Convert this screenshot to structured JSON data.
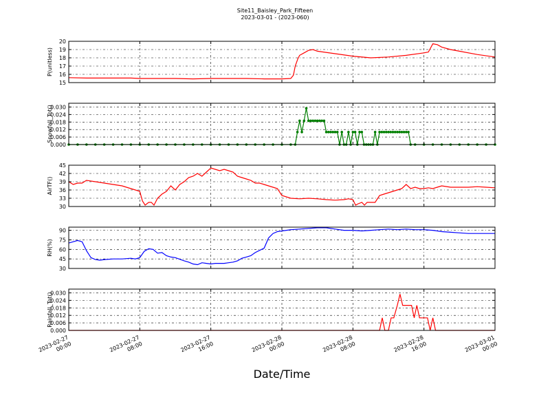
{
  "figure": {
    "title_line1": "Site11_Baisley_Park_Fifteen",
    "title_line2": "2023-03-01 - (2023-060)",
    "xlabel": "Date/Time",
    "x_ticks": [
      {
        "x": 0,
        "line1": "2023-02-27",
        "line2": "00:00"
      },
      {
        "x": 8,
        "line1": "2023-02-27",
        "line2": "08:00"
      },
      {
        "x": 16,
        "line1": "2023-02-27",
        "line2": "16:00"
      },
      {
        "x": 24,
        "line1": "2023-02-28",
        "line2": "00:00"
      },
      {
        "x": 32,
        "line1": "2023-02-28",
        "line2": "08:00"
      },
      {
        "x": 40,
        "line1": "2023-02-28",
        "line2": "16:00"
      },
      {
        "x": 48,
        "line1": "2023-03-01",
        "line2": "00:00"
      }
    ]
  },
  "chart_data": [
    {
      "type": "line",
      "ylabel": "P(unitless)",
      "color": "#ff0000",
      "markers": false,
      "xlim": [
        0,
        48
      ],
      "ylim": [
        15,
        20
      ],
      "yticks": [
        15,
        16,
        17,
        18,
        19,
        20
      ],
      "ytick_labels": [
        "15",
        "16",
        "17",
        "18",
        "19",
        "20"
      ],
      "grid": true,
      "x": [
        0,
        2,
        4,
        6,
        7,
        8,
        10,
        12,
        14,
        16,
        18,
        20,
        22,
        24,
        25,
        25.3,
        25.5,
        25.8,
        26,
        26.5,
        27,
        27.5,
        28,
        30,
        32,
        34,
        36,
        38,
        40,
        40.5,
        41,
        41.5,
        42,
        43,
        44,
        46,
        48
      ],
      "y": [
        15.6,
        15.55,
        15.55,
        15.55,
        15.55,
        15.5,
        15.5,
        15.5,
        15.45,
        15.5,
        15.5,
        15.5,
        15.45,
        15.45,
        15.5,
        15.9,
        17.0,
        17.9,
        18.3,
        18.6,
        18.9,
        19.0,
        18.8,
        18.5,
        18.2,
        18.0,
        18.1,
        18.3,
        18.6,
        18.7,
        19.7,
        19.6,
        19.3,
        19.0,
        18.8,
        18.4,
        18.1
      ]
    },
    {
      "type": "line",
      "ylabel": "Snowfall_Tot()",
      "color": "#007f00",
      "markers": true,
      "xlim": [
        0,
        48
      ],
      "ylim": [
        0,
        0.033
      ],
      "yticks": [
        0,
        0.006,
        0.012,
        0.018,
        0.024,
        0.03
      ],
      "ytick_labels": [
        "0.000",
        "0.006",
        "0.012",
        "0.018",
        "0.024",
        "0.030"
      ],
      "grid": true,
      "x": [
        0,
        1,
        2,
        3,
        4,
        5,
        6,
        7,
        8,
        9,
        10,
        11,
        12,
        13,
        14,
        15,
        16,
        17,
        18,
        19,
        20,
        21,
        22,
        23,
        24,
        25,
        25.5,
        25.75,
        26.0,
        26.25,
        26.5,
        26.75,
        27.0,
        27.25,
        27.5,
        27.75,
        28.0,
        28.25,
        28.5,
        28.75,
        29.0,
        29.25,
        29.5,
        29.75,
        30.0,
        30.25,
        30.5,
        30.75,
        31.0,
        31.25,
        31.5,
        31.75,
        32.0,
        32.25,
        32.5,
        32.75,
        33.0,
        33.25,
        33.5,
        33.75,
        34.0,
        34.25,
        34.5,
        34.75,
        35.0,
        35.25,
        35.5,
        35.75,
        36.0,
        36.25,
        36.5,
        36.75,
        37.0,
        37.25,
        37.5,
        37.75,
        38.0,
        38.25,
        38.5,
        39,
        40,
        41,
        42,
        43,
        44,
        45,
        46,
        47,
        48
      ],
      "y": [
        0,
        0,
        0,
        0,
        0,
        0,
        0,
        0,
        0,
        0,
        0,
        0,
        0,
        0,
        0,
        0,
        0,
        0,
        0,
        0,
        0,
        0,
        0,
        0,
        0,
        0,
        0,
        0.01,
        0.019,
        0.01,
        0.019,
        0.029,
        0.019,
        0.019,
        0.019,
        0.019,
        0.019,
        0.019,
        0.019,
        0.019,
        0.01,
        0.01,
        0.01,
        0.01,
        0.01,
        0.01,
        0.0,
        0.01,
        0.0,
        0.0,
        0.01,
        0.0,
        0.01,
        0.01,
        0.0,
        0.01,
        0.01,
        0.0,
        0.0,
        0.0,
        0.0,
        0.0,
        0.01,
        0.0,
        0.01,
        0.01,
        0.01,
        0.01,
        0.01,
        0.01,
        0.01,
        0.01,
        0.01,
        0.01,
        0.01,
        0.01,
        0.01,
        0.01,
        0.0,
        0,
        0,
        0,
        0,
        0,
        0,
        0,
        0,
        0,
        0
      ]
    },
    {
      "type": "line",
      "ylabel": "AirTF()",
      "color": "#ff0000",
      "markers": false,
      "xlim": [
        0,
        48
      ],
      "ylim": [
        30,
        45
      ],
      "yticks": [
        30,
        33,
        36,
        39,
        42,
        45
      ],
      "ytick_labels": [
        "30",
        "33",
        "36",
        "39",
        "42",
        "45"
      ],
      "grid": true,
      "x": [
        0,
        0.5,
        1,
        1.5,
        2,
        3,
        4,
        5,
        6,
        7,
        7.5,
        8,
        8.3,
        8.6,
        9,
        9.3,
        9.6,
        10,
        10.5,
        11,
        11.5,
        12,
        12.5,
        13,
        13.5,
        14,
        14.5,
        15,
        15.5,
        16,
        16.5,
        17,
        17.5,
        18,
        18.5,
        19,
        19.5,
        20,
        20.5,
        21,
        21.5,
        22,
        22.5,
        23,
        23.5,
        24,
        25,
        26,
        27,
        28,
        29,
        30,
        31,
        31.5,
        32,
        32.3,
        32.6,
        33,
        33.3,
        33.6,
        34,
        34.5,
        35,
        35.5,
        36,
        36.5,
        37,
        37.5,
        38,
        38.5,
        39,
        39.5,
        40,
        40.5,
        41,
        41.5,
        42,
        43,
        44,
        45,
        46,
        47,
        48
      ],
      "y": [
        39,
        38,
        38.5,
        38.5,
        39.5,
        39,
        38.5,
        38,
        37.5,
        36.5,
        36,
        35.5,
        32,
        30.5,
        31.5,
        31.5,
        30.5,
        33,
        34.5,
        35.5,
        37.5,
        36,
        38,
        39,
        40.5,
        41,
        42,
        41,
        42.5,
        44,
        43.5,
        43,
        43.5,
        43,
        42.5,
        41,
        40.5,
        40,
        39.5,
        38.5,
        38.5,
        38,
        37.5,
        37,
        36.5,
        34,
        33,
        32.8,
        33,
        32.8,
        32.5,
        32.3,
        32.5,
        32.8,
        32.5,
        30.5,
        31,
        31.5,
        30.5,
        31.5,
        31.5,
        31.5,
        34,
        34.5,
        35,
        35.5,
        36,
        36.5,
        38,
        36.5,
        37,
        36.5,
        36.5,
        36.8,
        36.5,
        37,
        37.5,
        37,
        37,
        37,
        37.2,
        37,
        36.8
      ]
    },
    {
      "type": "line",
      "ylabel": "RH(%)",
      "color": "#0000ff",
      "markers": false,
      "xlim": [
        0,
        48
      ],
      "ylim": [
        30,
        95
      ],
      "yticks": [
        30,
        45,
        60,
        75,
        90
      ],
      "ytick_labels": [
        "30",
        "45",
        "60",
        "75",
        "90"
      ],
      "grid": true,
      "x": [
        0,
        0.5,
        1,
        1.5,
        2,
        2.5,
        3,
        3.5,
        4,
        5,
        6,
        7,
        7.5,
        8,
        8.5,
        9,
        9.5,
        10,
        10.5,
        11,
        11.5,
        12,
        13,
        13.5,
        14,
        14.5,
        15,
        15.5,
        16,
        16.5,
        17,
        17.5,
        18,
        18.5,
        19,
        19.5,
        20,
        20.5,
        21,
        22,
        22.5,
        23,
        23.5,
        24,
        24.5,
        25,
        26,
        27,
        28,
        29,
        30,
        31,
        32,
        33,
        34,
        35,
        36,
        37,
        38,
        39,
        40,
        41,
        42,
        43,
        44,
        45,
        46,
        47,
        48
      ],
      "y": [
        70,
        72,
        74,
        72,
        58,
        47,
        44,
        43,
        44,
        45,
        45,
        46,
        45,
        47,
        57,
        61,
        60,
        54,
        55,
        50,
        48,
        47,
        42,
        40,
        37,
        36,
        39,
        38,
        37,
        38,
        38,
        38,
        39,
        40,
        42,
        46,
        48,
        50,
        55,
        62,
        78,
        85,
        88,
        89,
        90,
        91,
        92,
        93,
        94,
        94,
        92,
        90,
        90,
        89,
        90,
        91,
        92,
        91,
        92,
        91,
        91,
        90,
        88,
        87,
        86,
        85,
        85,
        85,
        85
      ]
    },
    {
      "type": "line",
      "ylabel": "Rainfall_Tot()",
      "color": "#ff0000",
      "markers": false,
      "xlim": [
        0,
        48
      ],
      "ylim": [
        0,
        0.033
      ],
      "yticks": [
        0,
        0.006,
        0.012,
        0.018,
        0.024,
        0.03
      ],
      "ytick_labels": [
        "0.000",
        "0.006",
        "0.012",
        "0.018",
        "0.024",
        "0.030"
      ],
      "grid": true,
      "x": [
        0,
        10,
        20,
        30,
        35,
        35.3,
        35.6,
        36.0,
        36.3,
        36.6,
        37.0,
        37.3,
        37.6,
        38.0,
        38.3,
        38.6,
        38.9,
        39.2,
        39.5,
        39.8,
        40.1,
        40.4,
        40.7,
        41.0,
        41.3,
        41.6,
        42,
        44,
        46,
        48
      ],
      "y": [
        0,
        0,
        0,
        0,
        0,
        0.01,
        0,
        0,
        0.01,
        0.01,
        0.02,
        0.029,
        0.02,
        0.02,
        0.02,
        0.02,
        0.01,
        0.02,
        0.01,
        0.01,
        0.01,
        0.01,
        0.0,
        0.01,
        0.0,
        0.0,
        0,
        0,
        0,
        0
      ]
    }
  ]
}
